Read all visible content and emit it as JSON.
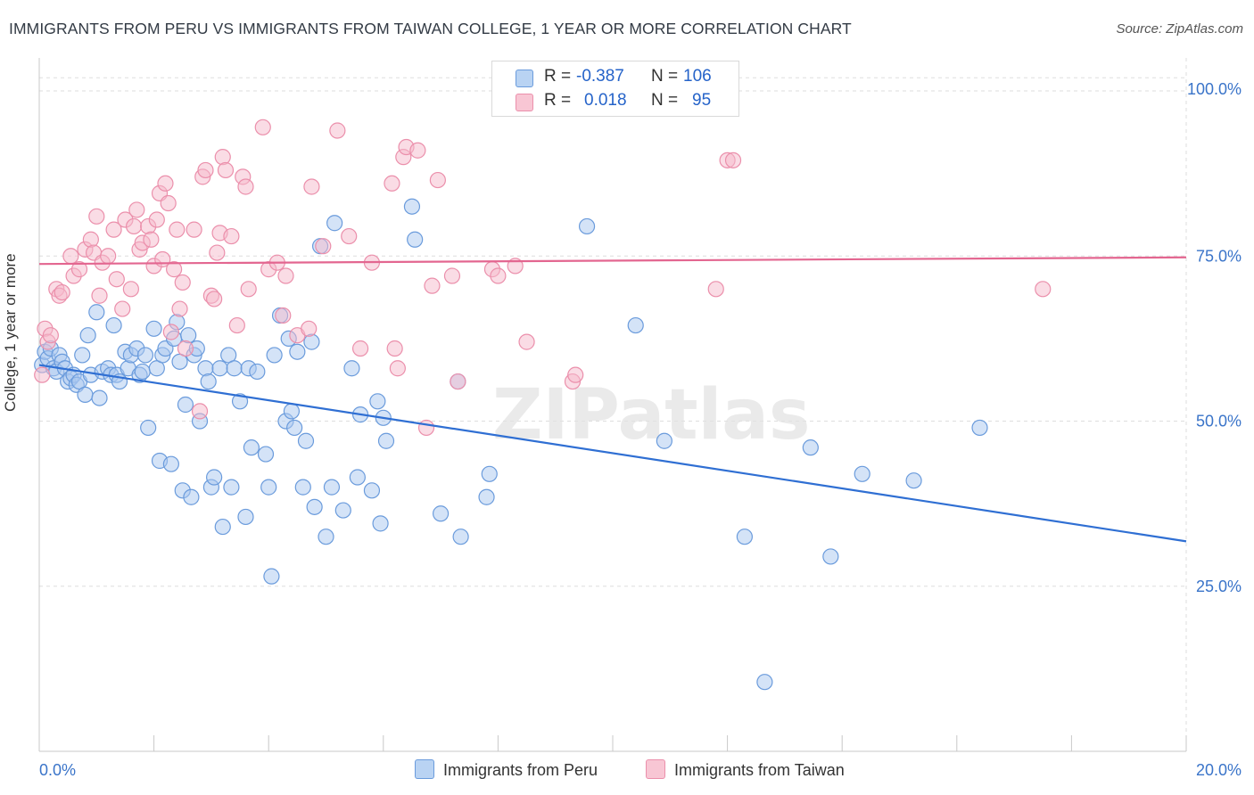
{
  "header": {
    "title": "IMMIGRANTS FROM PERU VS IMMIGRANTS FROM TAIWAN COLLEGE, 1 YEAR OR MORE CORRELATION CHART",
    "source": "Source: ZipAtlas.com"
  },
  "watermark": "ZIPatlas",
  "legend": {
    "peru": {
      "r_label": "R =",
      "r_value": "-0.387",
      "n_label": "N =",
      "n_value": "106"
    },
    "taiwan": {
      "r_label": "R =",
      "r_value": "0.018",
      "n_label": "N =",
      "n_value": "95"
    }
  },
  "colors": {
    "peru_fill": "#a9c8ef",
    "peru_stroke": "#6a9bdc",
    "peru_line": "#2f6fd3",
    "taiwan_fill": "#f6b9cb",
    "taiwan_stroke": "#eb8fab",
    "taiwan_line": "#e36690",
    "axis_label": "#3a74c9"
  },
  "chart_data": {
    "type": "scatter",
    "title": "IMMIGRANTS FROM PERU VS IMMIGRANTS FROM TAIWAN COLLEGE, 1 YEAR OR MORE CORRELATION CHART",
    "xlabel": "",
    "ylabel": "College, 1 year or more",
    "xlim": [
      0,
      20
    ],
    "ylim": [
      0,
      105
    ],
    "x_tick_labels": [
      "0.0%",
      "20.0%"
    ],
    "y_ticks": [
      25,
      50,
      75,
      100
    ],
    "y_tick_labels": [
      "25.0%",
      "50.0%",
      "75.0%",
      "100.0%"
    ],
    "grid": true,
    "legend_placement": "bottom",
    "series": [
      {
        "name": "Immigrants from Peru",
        "trend": {
          "x": [
            0,
            20
          ],
          "y": [
            58.5,
            31.8
          ]
        },
        "points": [
          [
            0.05,
            58.5
          ],
          [
            0.1,
            60.5
          ],
          [
            0.15,
            59.5
          ],
          [
            0.2,
            61
          ],
          [
            0.25,
            58
          ],
          [
            0.3,
            57.5
          ],
          [
            0.35,
            60
          ],
          [
            0.4,
            59
          ],
          [
            0.45,
            58
          ],
          [
            0.5,
            56
          ],
          [
            0.55,
            56.5
          ],
          [
            0.6,
            57
          ],
          [
            0.65,
            55.5
          ],
          [
            0.7,
            56
          ],
          [
            0.75,
            60
          ],
          [
            0.8,
            54
          ],
          [
            0.85,
            63
          ],
          [
            0.9,
            57
          ],
          [
            1.0,
            66.5
          ],
          [
            1.05,
            53.5
          ],
          [
            1.1,
            57.5
          ],
          [
            1.2,
            58
          ],
          [
            1.25,
            57
          ],
          [
            1.3,
            64.5
          ],
          [
            1.35,
            57
          ],
          [
            1.4,
            56
          ],
          [
            1.5,
            60.5
          ],
          [
            1.55,
            58
          ],
          [
            1.6,
            60
          ],
          [
            1.7,
            61
          ],
          [
            1.75,
            57
          ],
          [
            1.8,
            57.5
          ],
          [
            1.85,
            60
          ],
          [
            1.9,
            49
          ],
          [
            2.0,
            64
          ],
          [
            2.05,
            58
          ],
          [
            2.1,
            44
          ],
          [
            2.15,
            60
          ],
          [
            2.2,
            61
          ],
          [
            2.3,
            43.5
          ],
          [
            2.35,
            62.5
          ],
          [
            2.4,
            65
          ],
          [
            2.45,
            59
          ],
          [
            2.5,
            39.5
          ],
          [
            2.55,
            52.5
          ],
          [
            2.6,
            63
          ],
          [
            2.65,
            38.5
          ],
          [
            2.7,
            60
          ],
          [
            2.75,
            61
          ],
          [
            2.8,
            50
          ],
          [
            2.9,
            58
          ],
          [
            2.95,
            56
          ],
          [
            3.0,
            40
          ],
          [
            3.05,
            41.5
          ],
          [
            3.15,
            58
          ],
          [
            3.2,
            34
          ],
          [
            3.3,
            60
          ],
          [
            3.35,
            40
          ],
          [
            3.4,
            58
          ],
          [
            3.5,
            53
          ],
          [
            3.6,
            35.5
          ],
          [
            3.65,
            58
          ],
          [
            3.7,
            46
          ],
          [
            3.8,
            57.5
          ],
          [
            3.95,
            45
          ],
          [
            4.0,
            40
          ],
          [
            4.05,
            26.5
          ],
          [
            4.1,
            60
          ],
          [
            4.2,
            66
          ],
          [
            4.3,
            50
          ],
          [
            4.35,
            62.5
          ],
          [
            4.4,
            51.5
          ],
          [
            4.45,
            49
          ],
          [
            4.5,
            60.5
          ],
          [
            4.6,
            40
          ],
          [
            4.65,
            47
          ],
          [
            4.75,
            62
          ],
          [
            4.8,
            37
          ],
          [
            4.9,
            76.5
          ],
          [
            5.0,
            32.5
          ],
          [
            5.1,
            40
          ],
          [
            5.15,
            80
          ],
          [
            5.3,
            36.5
          ],
          [
            5.45,
            58
          ],
          [
            5.55,
            41.5
          ],
          [
            5.6,
            51
          ],
          [
            5.8,
            39.5
          ],
          [
            5.9,
            53
          ],
          [
            5.95,
            34.5
          ],
          [
            6.0,
            50.5
          ],
          [
            6.05,
            47
          ],
          [
            6.5,
            82.5
          ],
          [
            6.55,
            77.5
          ],
          [
            7.0,
            36
          ],
          [
            7.3,
            56
          ],
          [
            7.35,
            32.5
          ],
          [
            7.8,
            38.5
          ],
          [
            7.85,
            42
          ],
          [
            9.55,
            79.5
          ],
          [
            10.4,
            64.5
          ],
          [
            10.9,
            47
          ],
          [
            12.3,
            32.5
          ],
          [
            12.65,
            10.5
          ],
          [
            13.45,
            46
          ],
          [
            13.8,
            29.5
          ],
          [
            14.35,
            42
          ],
          [
            15.25,
            41
          ],
          [
            16.4,
            49
          ]
        ]
      },
      {
        "name": "Immigrants from Taiwan",
        "trend": {
          "x": [
            0,
            20
          ],
          "y": [
            73.8,
            74.8
          ]
        },
        "points": [
          [
            0.05,
            57
          ],
          [
            0.1,
            64
          ],
          [
            0.15,
            62
          ],
          [
            0.2,
            63
          ],
          [
            0.3,
            70
          ],
          [
            0.35,
            69
          ],
          [
            0.4,
            69.5
          ],
          [
            0.55,
            75
          ],
          [
            0.6,
            72
          ],
          [
            0.7,
            73
          ],
          [
            0.8,
            76
          ],
          [
            0.9,
            77.5
          ],
          [
            0.95,
            75.5
          ],
          [
            1.0,
            81
          ],
          [
            1.05,
            69
          ],
          [
            1.1,
            74
          ],
          [
            1.2,
            75
          ],
          [
            1.3,
            79
          ],
          [
            1.35,
            71.5
          ],
          [
            1.45,
            67
          ],
          [
            1.5,
            80.5
          ],
          [
            1.6,
            70
          ],
          [
            1.65,
            79.5
          ],
          [
            1.7,
            82
          ],
          [
            1.75,
            76
          ],
          [
            1.8,
            77
          ],
          [
            1.9,
            79.5
          ],
          [
            1.95,
            77.5
          ],
          [
            2.0,
            73.5
          ],
          [
            2.05,
            80.5
          ],
          [
            2.1,
            84.5
          ],
          [
            2.15,
            74.5
          ],
          [
            2.2,
            86
          ],
          [
            2.25,
            83
          ],
          [
            2.3,
            63.5
          ],
          [
            2.35,
            73
          ],
          [
            2.4,
            79
          ],
          [
            2.45,
            67
          ],
          [
            2.5,
            71
          ],
          [
            2.55,
            61
          ],
          [
            2.7,
            79
          ],
          [
            2.8,
            51.5
          ],
          [
            2.85,
            87
          ],
          [
            2.9,
            88
          ],
          [
            3.0,
            69
          ],
          [
            3.05,
            68.5
          ],
          [
            3.1,
            75.5
          ],
          [
            3.15,
            78.5
          ],
          [
            3.2,
            90
          ],
          [
            3.25,
            88
          ],
          [
            3.35,
            78
          ],
          [
            3.45,
            64.5
          ],
          [
            3.55,
            87
          ],
          [
            3.6,
            85.5
          ],
          [
            3.65,
            70
          ],
          [
            3.9,
            94.5
          ],
          [
            4.0,
            73
          ],
          [
            4.15,
            74
          ],
          [
            4.25,
            66
          ],
          [
            4.3,
            72
          ],
          [
            4.5,
            63
          ],
          [
            4.7,
            64
          ],
          [
            4.75,
            85.5
          ],
          [
            4.95,
            76.5
          ],
          [
            5.2,
            94
          ],
          [
            5.4,
            78
          ],
          [
            5.6,
            61
          ],
          [
            5.8,
            74
          ],
          [
            6.15,
            86
          ],
          [
            6.2,
            61
          ],
          [
            6.25,
            58
          ],
          [
            6.35,
            90
          ],
          [
            6.4,
            91.5
          ],
          [
            6.6,
            91
          ],
          [
            6.75,
            49
          ],
          [
            6.85,
            70.5
          ],
          [
            6.95,
            86.5
          ],
          [
            7.2,
            72
          ],
          [
            7.3,
            56
          ],
          [
            7.9,
            73
          ],
          [
            8.0,
            72
          ],
          [
            8.3,
            73.5
          ],
          [
            8.5,
            62
          ],
          [
            9.3,
            56
          ],
          [
            9.35,
            57
          ],
          [
            11.8,
            70
          ],
          [
            12.0,
            89.5
          ],
          [
            12.1,
            89.5
          ],
          [
            17.5,
            70
          ]
        ]
      }
    ]
  },
  "bottom_legend": {
    "peru_label": "Immigrants from Peru",
    "taiwan_label": "Immigrants from Taiwan"
  }
}
